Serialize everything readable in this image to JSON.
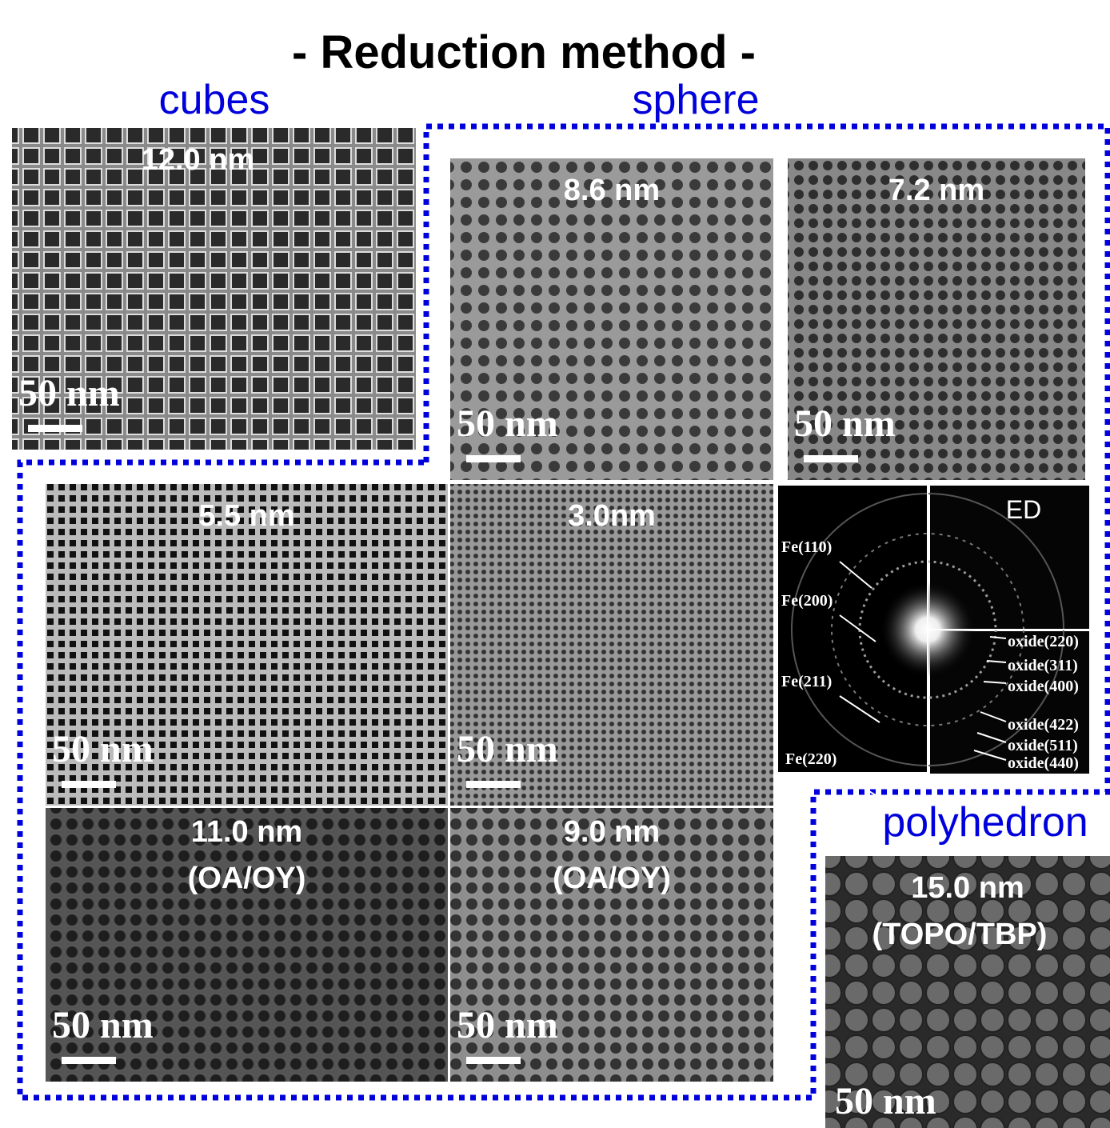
{
  "title": "- Reduction method -",
  "groups": [
    "cubes",
    "sphere",
    "polyhedron"
  ],
  "panels": [
    {
      "label": "12.0 nm",
      "scale": "50 nm"
    },
    {
      "label": "8.6 nm",
      "scale": "50 nm"
    },
    {
      "label": "7.2 nm",
      "scale": "50 nm"
    },
    {
      "label": "5.5 nm",
      "scale": "50 nm"
    },
    {
      "label": "3.0nm",
      "scale": "50 nm"
    },
    {
      "label": "11.0 nm",
      "sublabel": "(OA/OY)",
      "scale": "50 nm"
    },
    {
      "label": "9.0 nm",
      "sublabel": "(OA/OY)",
      "scale": "50 nm"
    },
    {
      "label": "15.0 nm",
      "sublabel": "(TOPO/TBP)",
      "scale": "50 nm"
    }
  ],
  "ed": {
    "label": "ED",
    "fe_peaks": [
      "Fe(110)",
      "Fe(200)",
      "Fe(211)",
      "Fe(220)"
    ],
    "oxide_peaks": [
      "oxide(220)",
      "oxide(311)",
      "oxide(400)",
      "oxide(422)",
      "oxide(511)",
      "oxide(440)"
    ]
  }
}
